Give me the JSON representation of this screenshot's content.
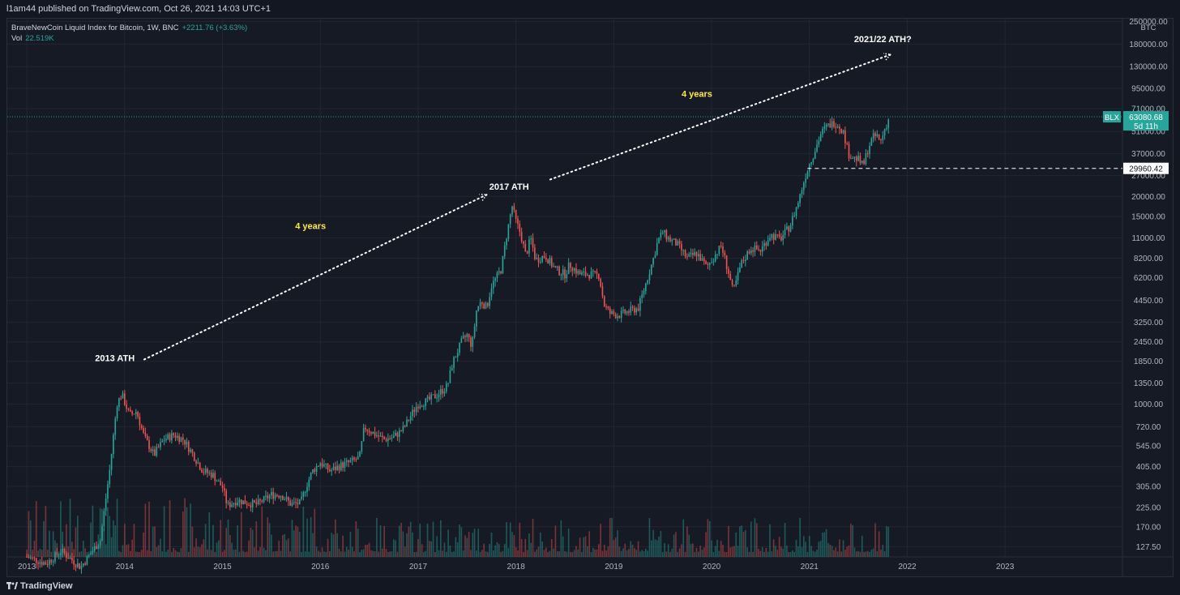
{
  "header": {
    "publisher": "l1am44 published on TradingView.com, Oct 26, 2021 14:03 UTC+1"
  },
  "legend": {
    "symbol": "BraveNewCoin Liquid Index for Bitcoin, 1W, BNC",
    "change": "+2211.76 (+3.63%)",
    "vol_label": "Vol",
    "vol_value": "22.519K"
  },
  "footer": {
    "brand": "TradingView"
  },
  "colors": {
    "up": "#26a69a",
    "down": "#ef5350",
    "grid": "#232632",
    "bg": "#161a25",
    "annotation": "#ffeb3b",
    "badge": "#26a69a"
  },
  "chart_data": {
    "type": "line",
    "title": "BraveNewCoin Liquid Index for Bitcoin, 1W, BNC",
    "scale": "log",
    "ylabel": "BTC",
    "ylim": [
      110,
      260000
    ],
    "xlim": [
      2012.8,
      2024.2
    ],
    "y_ticks": [
      127.5,
      170,
      225,
      305,
      405,
      545,
      720,
      1000,
      1350,
      1850,
      2450,
      3250,
      4450,
      6200,
      8200,
      11000,
      15000,
      20000,
      27000,
      37000,
      51000,
      71000,
      95000,
      130000,
      180000,
      250000
    ],
    "y_tick_labels": [
      "127.50",
      "170.00",
      "225.00",
      "305.00",
      "405.00",
      "545.00",
      "720.00",
      "1000.00",
      "1350.00",
      "1850.00",
      "2450.00",
      "3250.00",
      "4450.00",
      "6200.00",
      "8200.00",
      "11000.00",
      "15000.00",
      "20000.00",
      "27000.00",
      "37000.00",
      "51000.00",
      "71000.00",
      "95000.00",
      "130000.00",
      "180000.00",
      "250000.00"
    ],
    "x_ticks": [
      2013,
      2014,
      2015,
      2016,
      2017,
      2018,
      2019,
      2020,
      2021,
      2022,
      2023
    ],
    "x_tick_labels": [
      "2013",
      "2014",
      "2015",
      "2016",
      "2017",
      "2018",
      "2019",
      "2020",
      "2021",
      "2022",
      "2023"
    ],
    "series": [
      {
        "name": "BLX weekly close (approx.)",
        "points": [
          [
            2013.0,
            110
          ],
          [
            2013.2,
            100
          ],
          [
            2013.35,
            120
          ],
          [
            2013.55,
            95
          ],
          [
            2013.75,
            140
          ],
          [
            2013.85,
            400
          ],
          [
            2013.92,
            1000
          ],
          [
            2013.97,
            1150
          ],
          [
            2014.05,
            850
          ],
          [
            2014.12,
            900
          ],
          [
            2014.2,
            620
          ],
          [
            2014.3,
            480
          ],
          [
            2014.4,
            600
          ],
          [
            2014.5,
            640
          ],
          [
            2014.6,
            600
          ],
          [
            2014.7,
            480
          ],
          [
            2014.8,
            380
          ],
          [
            2014.9,
            360
          ],
          [
            2015.0,
            300
          ],
          [
            2015.05,
            230
          ],
          [
            2015.15,
            250
          ],
          [
            2015.25,
            240
          ],
          [
            2015.35,
            235
          ],
          [
            2015.5,
            270
          ],
          [
            2015.6,
            270
          ],
          [
            2015.7,
            235
          ],
          [
            2015.8,
            240
          ],
          [
            2015.85,
            300
          ],
          [
            2015.92,
            380
          ],
          [
            2016.0,
            430
          ],
          [
            2016.1,
            380
          ],
          [
            2016.2,
            410
          ],
          [
            2016.3,
            430
          ],
          [
            2016.4,
            460
          ],
          [
            2016.45,
            720
          ],
          [
            2016.55,
            650
          ],
          [
            2016.65,
            600
          ],
          [
            2016.75,
            620
          ],
          [
            2016.85,
            700
          ],
          [
            2016.95,
            900
          ],
          [
            2017.0,
            1000
          ],
          [
            2017.1,
            1050
          ],
          [
            2017.2,
            1150
          ],
          [
            2017.3,
            1300
          ],
          [
            2017.35,
            1800
          ],
          [
            2017.45,
            2500
          ],
          [
            2017.5,
            2700
          ],
          [
            2017.55,
            2300
          ],
          [
            2017.6,
            4000
          ],
          [
            2017.65,
            4400
          ],
          [
            2017.7,
            4000
          ],
          [
            2017.75,
            5500
          ],
          [
            2017.85,
            7000
          ],
          [
            2017.9,
            11000
          ],
          [
            2017.96,
            17500
          ],
          [
            2018.0,
            14000
          ],
          [
            2018.05,
            11500
          ],
          [
            2018.1,
            8500
          ],
          [
            2018.15,
            11000
          ],
          [
            2018.2,
            8000
          ],
          [
            2018.3,
            8500
          ],
          [
            2018.4,
            7000
          ],
          [
            2018.5,
            6500
          ],
          [
            2018.55,
            7500
          ],
          [
            2018.65,
            6500
          ],
          [
            2018.75,
            6500
          ],
          [
            2018.85,
            6400
          ],
          [
            2018.9,
            4200
          ],
          [
            2018.96,
            3700
          ],
          [
            2019.05,
            3600
          ],
          [
            2019.15,
            3800
          ],
          [
            2019.25,
            4000
          ],
          [
            2019.3,
            5000
          ],
          [
            2019.4,
            8000
          ],
          [
            2019.45,
            10500
          ],
          [
            2019.5,
            12000
          ],
          [
            2019.55,
            11000
          ],
          [
            2019.65,
            10000
          ],
          [
            2019.75,
            8200
          ],
          [
            2019.85,
            8800
          ],
          [
            2019.95,
            7200
          ],
          [
            2020.0,
            8000
          ],
          [
            2020.1,
            9800
          ],
          [
            2020.18,
            6400
          ],
          [
            2020.22,
            5000
          ],
          [
            2020.3,
            7500
          ],
          [
            2020.4,
            9500
          ],
          [
            2020.5,
            9200
          ],
          [
            2020.6,
            11500
          ],
          [
            2020.7,
            10800
          ],
          [
            2020.8,
            13000
          ],
          [
            2020.88,
            18000
          ],
          [
            2020.96,
            27000
          ],
          [
            2021.0,
            32000
          ],
          [
            2021.05,
            38000
          ],
          [
            2021.12,
            50000
          ],
          [
            2021.18,
            55000
          ],
          [
            2021.25,
            58000
          ],
          [
            2021.3,
            56000
          ],
          [
            2021.35,
            50000
          ],
          [
            2021.4,
            37000
          ],
          [
            2021.45,
            35000
          ],
          [
            2021.5,
            34000
          ],
          [
            2021.55,
            31000
          ],
          [
            2021.6,
            40000
          ],
          [
            2021.65,
            47000
          ],
          [
            2021.7,
            48000
          ],
          [
            2021.72,
            43000
          ],
          [
            2021.78,
            55000
          ],
          [
            2021.82,
            63080
          ]
        ]
      }
    ],
    "price_lines": [
      {
        "label": "BLX",
        "value": 63080.68,
        "value_label": "63080.68",
        "countdown": "5d 11h"
      },
      {
        "label": "",
        "value": 29960.42,
        "value_label": "29960.42"
      }
    ],
    "annotations": [
      {
        "text": "2013 ATH",
        "x": 2013.9,
        "y": 1850,
        "color": "white"
      },
      {
        "text": "2017 ATH",
        "x": 2017.93,
        "y": 22000,
        "color": "white"
      },
      {
        "text": "2021/22 ATH?",
        "x": 2021.75,
        "y": 185000,
        "color": "white"
      },
      {
        "text": "4 years",
        "x": 2015.9,
        "y": 12500,
        "color": "yellow"
      },
      {
        "text": "4 years",
        "x": 2019.85,
        "y": 84000,
        "color": "yellow"
      }
    ],
    "arrows": [
      {
        "from": [
          2014.2,
          1900
        ],
        "to": [
          2017.7,
          20500
        ]
      },
      {
        "from": [
          2018.35,
          25500
        ],
        "to": [
          2021.83,
          155000
        ]
      }
    ]
  }
}
